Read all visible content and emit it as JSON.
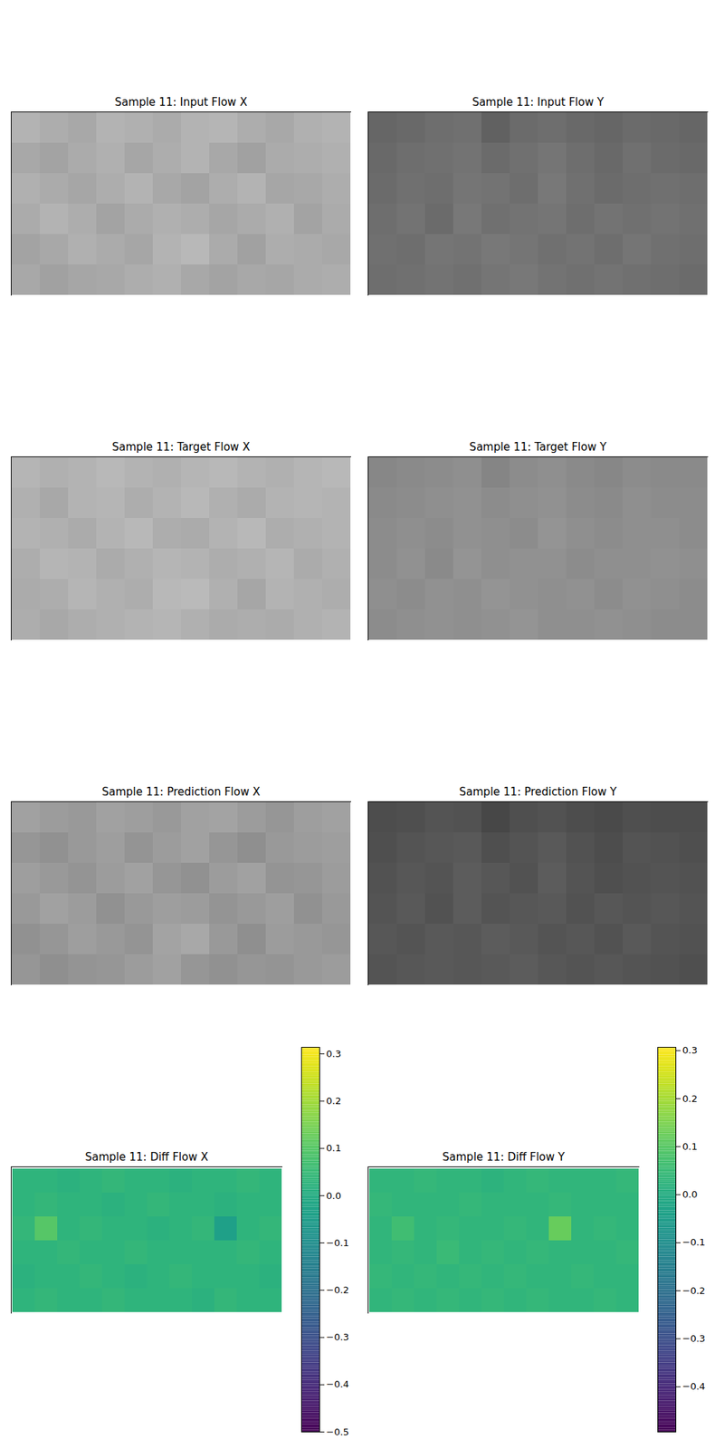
{
  "chart_data": [
    {
      "type": "heatmap",
      "title": "Sample 11: Input Flow X",
      "tick_labels": false,
      "color": "gray",
      "clim": [
        0,
        1
      ],
      "cells": [
        [
          0.7,
          0.68,
          0.66,
          0.7,
          0.69,
          0.67,
          0.7,
          0.71,
          0.68,
          0.66,
          0.69,
          0.7
        ],
        [
          0.66,
          0.64,
          0.67,
          0.69,
          0.65,
          0.68,
          0.7,
          0.66,
          0.63,
          0.67,
          0.68,
          0.69
        ],
        [
          0.69,
          0.67,
          0.65,
          0.68,
          0.7,
          0.66,
          0.64,
          0.68,
          0.7,
          0.65,
          0.66,
          0.68
        ],
        [
          0.67,
          0.7,
          0.68,
          0.64,
          0.67,
          0.69,
          0.68,
          0.65,
          0.67,
          0.69,
          0.64,
          0.67
        ],
        [
          0.64,
          0.66,
          0.69,
          0.67,
          0.65,
          0.7,
          0.72,
          0.67,
          0.63,
          0.68,
          0.67,
          0.66
        ],
        [
          0.66,
          0.63,
          0.65,
          0.66,
          0.68,
          0.69,
          0.66,
          0.64,
          0.66,
          0.65,
          0.67,
          0.68
        ]
      ]
    },
    {
      "type": "heatmap",
      "title": "Sample 11: Input Flow Y",
      "tick_labels": false,
      "color": "gray",
      "clim": [
        0,
        1
      ],
      "cells": [
        [
          0.4,
          0.41,
          0.43,
          0.44,
          0.38,
          0.42,
          0.43,
          0.41,
          0.4,
          0.42,
          0.41,
          0.4
        ],
        [
          0.41,
          0.43,
          0.44,
          0.45,
          0.42,
          0.44,
          0.46,
          0.43,
          0.41,
          0.44,
          0.42,
          0.41
        ],
        [
          0.42,
          0.44,
          0.43,
          0.46,
          0.45,
          0.43,
          0.47,
          0.44,
          0.42,
          0.43,
          0.44,
          0.43
        ],
        [
          0.43,
          0.45,
          0.42,
          0.47,
          0.44,
          0.45,
          0.46,
          0.43,
          0.45,
          0.44,
          0.45,
          0.44
        ],
        [
          0.44,
          0.43,
          0.46,
          0.45,
          0.47,
          0.46,
          0.44,
          0.45,
          0.43,
          0.46,
          0.44,
          0.43
        ],
        [
          0.43,
          0.44,
          0.45,
          0.44,
          0.46,
          0.47,
          0.45,
          0.44,
          0.45,
          0.44,
          0.43,
          0.42
        ]
      ]
    },
    {
      "type": "heatmap",
      "title": "Sample 11: Target Flow X",
      "tick_labels": false,
      "color": "gray",
      "clim": [
        0,
        1
      ],
      "cells": [
        [
          0.71,
          0.69,
          0.7,
          0.72,
          0.7,
          0.69,
          0.71,
          0.72,
          0.7,
          0.69,
          0.71,
          0.72
        ],
        [
          0.69,
          0.66,
          0.7,
          0.71,
          0.68,
          0.7,
          0.72,
          0.69,
          0.67,
          0.7,
          0.71,
          0.7
        ],
        [
          0.7,
          0.69,
          0.67,
          0.7,
          0.72,
          0.68,
          0.67,
          0.7,
          0.72,
          0.68,
          0.69,
          0.7
        ],
        [
          0.68,
          0.71,
          0.7,
          0.67,
          0.69,
          0.71,
          0.7,
          0.68,
          0.69,
          0.71,
          0.67,
          0.69
        ],
        [
          0.67,
          0.68,
          0.71,
          0.69,
          0.68,
          0.72,
          0.73,
          0.69,
          0.65,
          0.7,
          0.69,
          0.68
        ],
        [
          0.68,
          0.66,
          0.68,
          0.69,
          0.7,
          0.71,
          0.69,
          0.67,
          0.68,
          0.67,
          0.69,
          0.7
        ]
      ]
    },
    {
      "type": "heatmap",
      "title": "Sample 11: Target Flow Y",
      "tick_labels": false,
      "color": "gray",
      "clim": [
        0,
        1
      ],
      "cells": [
        [
          0.53,
          0.54,
          0.55,
          0.56,
          0.52,
          0.55,
          0.56,
          0.54,
          0.53,
          0.55,
          0.54,
          0.54
        ],
        [
          0.54,
          0.55,
          0.56,
          0.57,
          0.55,
          0.56,
          0.57,
          0.55,
          0.54,
          0.56,
          0.55,
          0.55
        ],
        [
          0.55,
          0.56,
          0.55,
          0.57,
          0.56,
          0.55,
          0.58,
          0.56,
          0.55,
          0.56,
          0.56,
          0.55
        ],
        [
          0.55,
          0.57,
          0.54,
          0.58,
          0.56,
          0.57,
          0.57,
          0.55,
          0.56,
          0.56,
          0.57,
          0.56
        ],
        [
          0.56,
          0.55,
          0.57,
          0.56,
          0.58,
          0.57,
          0.56,
          0.57,
          0.55,
          0.57,
          0.56,
          0.55
        ],
        [
          0.55,
          0.56,
          0.57,
          0.56,
          0.57,
          0.58,
          0.56,
          0.56,
          0.57,
          0.56,
          0.55,
          0.55
        ]
      ]
    },
    {
      "type": "heatmap",
      "title": "Sample 11: Prediction Flow X",
      "tick_labels": false,
      "color": "gray",
      "clim": [
        0,
        1
      ],
      "cells": [
        [
          0.63,
          0.61,
          0.6,
          0.63,
          0.62,
          0.6,
          0.63,
          0.64,
          0.61,
          0.59,
          0.62,
          0.63
        ],
        [
          0.59,
          0.57,
          0.6,
          0.62,
          0.58,
          0.61,
          0.63,
          0.59,
          0.56,
          0.6,
          0.61,
          0.62
        ],
        [
          0.62,
          0.6,
          0.58,
          0.61,
          0.63,
          0.59,
          0.57,
          0.61,
          0.63,
          0.58,
          0.59,
          0.61
        ],
        [
          0.6,
          0.63,
          0.61,
          0.57,
          0.6,
          0.62,
          0.61,
          0.58,
          0.6,
          0.62,
          0.57,
          0.6
        ],
        [
          0.57,
          0.59,
          0.62,
          0.6,
          0.58,
          0.64,
          0.66,
          0.6,
          0.56,
          0.61,
          0.6,
          0.59
        ],
        [
          0.59,
          0.56,
          0.58,
          0.59,
          0.61,
          0.63,
          0.59,
          0.57,
          0.59,
          0.58,
          0.6,
          0.61
        ]
      ]
    },
    {
      "type": "heatmap",
      "title": "Sample 11: Prediction Flow Y",
      "tick_labels": false,
      "color": "gray",
      "clim": [
        0,
        1
      ],
      "cells": [
        [
          0.3,
          0.31,
          0.33,
          0.32,
          0.28,
          0.31,
          0.32,
          0.3,
          0.29,
          0.31,
          0.3,
          0.3
        ],
        [
          0.31,
          0.33,
          0.34,
          0.35,
          0.31,
          0.33,
          0.35,
          0.32,
          0.3,
          0.33,
          0.32,
          0.31
        ],
        [
          0.32,
          0.34,
          0.33,
          0.36,
          0.34,
          0.32,
          0.36,
          0.33,
          0.31,
          0.32,
          0.33,
          0.32
        ],
        [
          0.33,
          0.35,
          0.32,
          0.36,
          0.33,
          0.34,
          0.35,
          0.32,
          0.34,
          0.33,
          0.34,
          0.33
        ],
        [
          0.34,
          0.33,
          0.35,
          0.34,
          0.36,
          0.35,
          0.33,
          0.34,
          0.32,
          0.35,
          0.33,
          0.32
        ],
        [
          0.33,
          0.34,
          0.35,
          0.34,
          0.35,
          0.36,
          0.34,
          0.33,
          0.34,
          0.33,
          0.32,
          0.31
        ]
      ]
    },
    {
      "type": "heatmap",
      "title": "Sample 11: Diff Flow X",
      "tick_labels": false,
      "color": "viridis",
      "colorbar": {
        "range": [
          -0.5,
          0.314
        ],
        "ticks": [
          {
            "value": -0.5,
            "label": "−0.5"
          },
          {
            "value": -0.4,
            "label": "−0.4"
          },
          {
            "value": -0.3,
            "label": "−0.3"
          },
          {
            "value": -0.2,
            "label": "−0.2"
          },
          {
            "value": -0.1,
            "label": "−0.1"
          },
          {
            "value": 0,
            "label": "0.0"
          },
          0.1,
          0.2,
          0.3
        ]
      },
      "cells": [
        [
          0.03,
          0.03,
          0.02,
          0.03,
          0.04,
          0.03,
          0.03,
          0.02,
          0.03,
          0.03,
          0.04,
          0.03
        ],
        [
          0.03,
          0.04,
          0.03,
          0.03,
          0.02,
          0.03,
          0.04,
          0.03,
          0.03,
          0.02,
          0.03,
          0.03
        ],
        [
          0.04,
          0.1,
          0.03,
          0.04,
          0.03,
          0.03,
          0.02,
          0.03,
          0.04,
          -0.04,
          0.03,
          0.04
        ],
        [
          0.03,
          0.03,
          0.04,
          0.03,
          0.03,
          0.04,
          0.03,
          0.03,
          0.03,
          0.03,
          0.04,
          0.03
        ],
        [
          0.02,
          0.03,
          0.03,
          0.04,
          0.03,
          0.02,
          0.03,
          0.04,
          0.03,
          0.03,
          0.03,
          0.02
        ],
        [
          0.03,
          0.04,
          0.03,
          0.03,
          0.04,
          0.03,
          0.03,
          0.03,
          0.02,
          0.04,
          0.03,
          0.03
        ]
      ]
    },
    {
      "type": "heatmap",
      "title": "Sample 11: Diff Flow Y",
      "tick_labels": false,
      "color": "viridis",
      "colorbar": {
        "range": [
          -0.494,
          0.307
        ],
        "ticks": [
          {
            "value": -0.4,
            "label": "−0.4"
          },
          {
            "value": -0.3,
            "label": "−0.3"
          },
          {
            "value": -0.2,
            "label": "−0.2"
          },
          {
            "value": -0.1,
            "label": "−0.1"
          },
          {
            "value": 0,
            "label": "0.0"
          },
          0.1,
          0.2,
          0.3
        ]
      },
      "cells": [
        [
          0.03,
          0.03,
          0.04,
          0.03,
          0.03,
          0.02,
          0.03,
          0.04,
          0.03,
          0.03,
          0.03,
          0.04
        ],
        [
          0.04,
          0.03,
          0.03,
          0.03,
          0.04,
          0.03,
          0.03,
          0.03,
          0.04,
          0.03,
          0.03,
          0.03
        ],
        [
          0.03,
          0.06,
          0.03,
          0.04,
          0.03,
          0.03,
          0.04,
          0.03,
          0.12,
          0.03,
          0.04,
          0.03
        ],
        [
          0.03,
          0.04,
          0.03,
          0.05,
          0.03,
          0.04,
          0.03,
          0.04,
          0.03,
          0.03,
          0.03,
          0.04
        ],
        [
          0.04,
          0.03,
          0.04,
          0.03,
          0.04,
          0.03,
          0.04,
          0.03,
          0.03,
          0.04,
          0.03,
          0.03
        ],
        [
          0.03,
          0.04,
          0.03,
          0.04,
          0.03,
          0.04,
          0.03,
          0.04,
          0.03,
          0.03,
          0.04,
          0.03
        ]
      ]
    }
  ]
}
